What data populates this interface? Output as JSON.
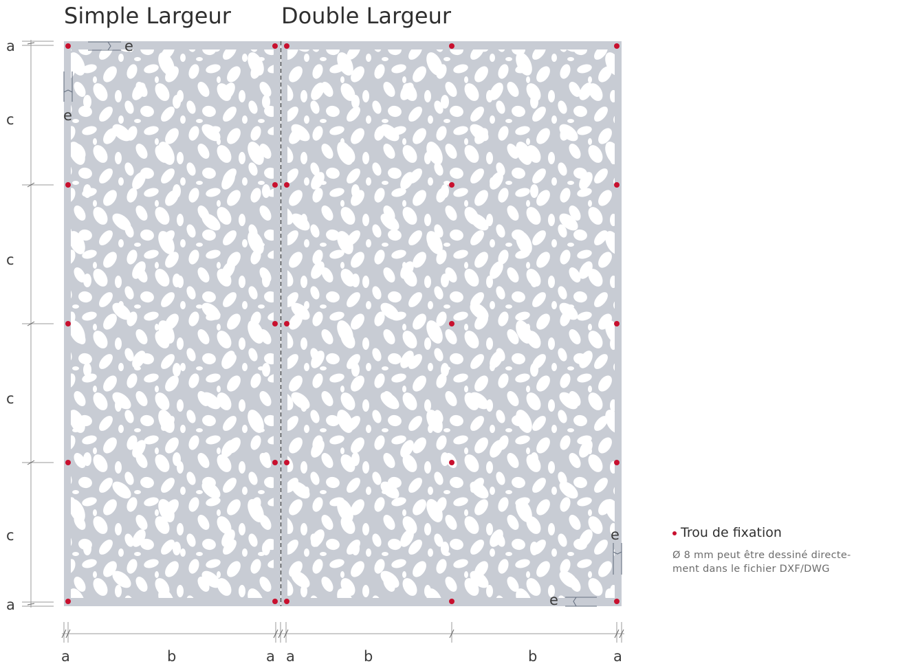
{
  "header": {
    "single_width": "Simple Largeur",
    "double_width": "Double Largeur"
  },
  "dimensions": {
    "a": "a",
    "b": "b",
    "c": "c",
    "e": "e"
  },
  "legend": {
    "title": "Trou de fixation",
    "description_line1": "Ø 8 mm peut être dessiné directe-",
    "description_line2": "ment dans le fichier DXF/DWG"
  },
  "colors": {
    "panel": "#c8ccd4",
    "hole_marker": "#c8102e",
    "dimension_line": "#9a9a9a"
  },
  "icons": {
    "legend_marker": "red-dot-icon"
  }
}
